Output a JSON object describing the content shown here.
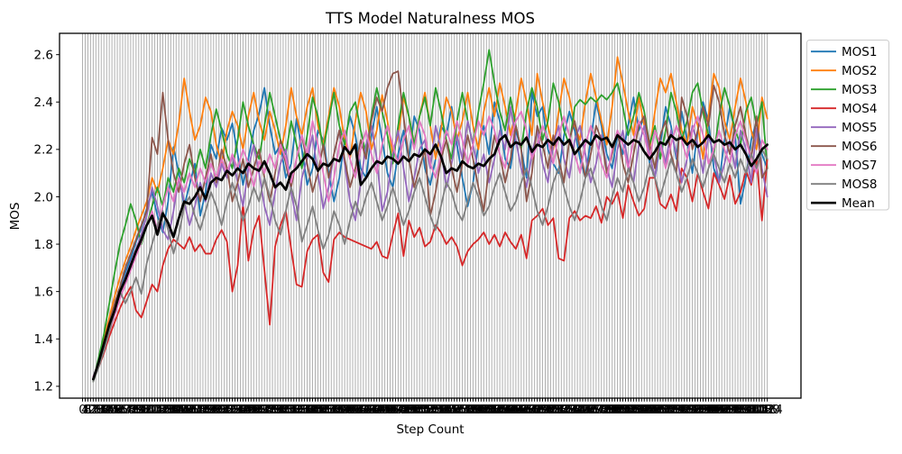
{
  "chart_data": {
    "type": "line",
    "title": "TTS Model Naturalness MOS",
    "xlabel": "Step Count",
    "ylabel": "MOS",
    "x_start": 16,
    "x_step": 8,
    "x_max": 1024,
    "x_tick_min": 0,
    "x_tick_step": 4,
    "xlim": [
      -34.4,
      1074.4
    ],
    "ylim": [
      1.15,
      2.69
    ],
    "yticks": [
      1.2,
      1.4,
      1.6,
      1.8,
      2.0,
      2.2,
      2.4,
      2.6
    ],
    "grid": "vertical",
    "grid_color": "#b0b0b0",
    "legend_position": "upper right outside",
    "series": [
      {
        "name": "MOS1",
        "color": "#1f77b4",
        "lw": 1.8,
        "values": [
          1.23,
          1.29,
          1.36,
          1.44,
          1.53,
          1.61,
          1.68,
          1.74,
          1.81,
          1.87,
          1.95,
          2.02,
          1.92,
          1.85,
          1.98,
          2.21,
          2.1,
          1.96,
          2.05,
          2.14,
          1.92,
          2.02,
          2.22,
          2.16,
          2.29,
          2.24,
          2.31,
          2.18,
          2.05,
          2.16,
          2.28,
          2.35,
          2.46,
          2.3,
          2.18,
          2.22,
          2.08,
          2.14,
          2.33,
          2.2,
          2.05,
          2.12,
          2.28,
          2.24,
          2.1,
          1.98,
          2.08,
          2.24,
          2.34,
          2.26,
          2.12,
          2.08,
          2.26,
          2.38,
          2.24,
          2.1,
          2.04,
          2.18,
          2.28,
          2.16,
          2.34,
          2.28,
          2.12,
          2.05,
          2.16,
          2.3,
          2.26,
          2.38,
          2.22,
          2.08,
          1.96,
          2.06,
          2.22,
          2.3,
          2.18,
          2.4,
          2.32,
          2.16,
          2.12,
          2.28,
          2.2,
          2.08,
          2.44,
          2.34,
          2.38,
          2.2,
          2.14,
          2.1,
          2.26,
          2.36,
          2.28,
          2.16,
          2.08,
          2.24,
          2.4,
          2.3,
          2.18,
          2.12,
          2.26,
          2.18,
          2.3,
          2.42,
          2.28,
          2.34,
          2.14,
          2.08,
          2.22,
          2.38,
          2.3,
          2.16,
          2.36,
          2.24,
          2.1,
          2.28,
          2.4,
          2.32,
          2.12,
          2.06,
          2.24,
          2.38,
          2.26,
          1.97,
          2.08,
          2.24,
          2.32,
          2.18,
          2.12
        ]
      },
      {
        "name": "MOS2",
        "color": "#ff7f0e",
        "lw": 1.8,
        "values": [
          1.23,
          1.31,
          1.4,
          1.49,
          1.58,
          1.66,
          1.73,
          1.79,
          1.86,
          1.92,
          1.98,
          2.08,
          2.02,
          2.12,
          2.24,
          2.18,
          2.31,
          2.5,
          2.36,
          2.24,
          2.3,
          2.42,
          2.36,
          2.22,
          2.14,
          2.28,
          2.36,
          2.3,
          2.2,
          2.34,
          2.44,
          2.32,
          2.24,
          2.36,
          2.28,
          2.18,
          2.3,
          2.46,
          2.34,
          2.26,
          2.38,
          2.46,
          2.3,
          2.22,
          2.34,
          2.46,
          2.38,
          2.24,
          2.16,
          2.32,
          2.44,
          2.36,
          2.2,
          2.28,
          2.43,
          2.32,
          2.18,
          2.26,
          2.42,
          2.34,
          2.22,
          2.34,
          2.44,
          2.3,
          2.16,
          2.28,
          2.42,
          2.36,
          2.24,
          2.32,
          2.44,
          2.3,
          2.2,
          2.36,
          2.46,
          2.34,
          2.48,
          2.38,
          2.26,
          2.36,
          2.5,
          2.4,
          2.26,
          2.52,
          2.4,
          2.3,
          2.2,
          2.36,
          2.5,
          2.42,
          2.3,
          2.24,
          2.4,
          2.52,
          2.42,
          2.32,
          2.22,
          2.38,
          2.59,
          2.48,
          2.36,
          2.26,
          2.42,
          2.3,
          2.2,
          2.36,
          2.5,
          2.44,
          2.52,
          2.4,
          2.28,
          2.22,
          2.38,
          2.3,
          2.16,
          2.34,
          2.52,
          2.46,
          2.32,
          2.24,
          2.38,
          2.5,
          2.4,
          2.28,
          2.2,
          2.42,
          2.33
        ]
      },
      {
        "name": "MOS3",
        "color": "#2ca02c",
        "lw": 1.8,
        "values": [
          1.22,
          1.32,
          1.42,
          1.55,
          1.68,
          1.8,
          1.88,
          1.97,
          1.9,
          1.8,
          1.88,
          1.96,
          2.04,
          1.96,
          2.08,
          2.02,
          2.12,
          2.06,
          2.16,
          2.1,
          2.2,
          2.12,
          2.26,
          2.37,
          2.28,
          2.18,
          2.12,
          2.24,
          2.4,
          2.3,
          2.22,
          2.16,
          2.3,
          2.44,
          2.34,
          2.24,
          2.18,
          2.32,
          2.22,
          2.12,
          2.26,
          2.42,
          2.34,
          2.2,
          2.32,
          2.44,
          2.3,
          2.22,
          2.36,
          2.4,
          2.28,
          2.18,
          2.34,
          2.46,
          2.36,
          2.26,
          2.14,
          2.3,
          2.44,
          2.34,
          2.22,
          2.34,
          2.42,
          2.3,
          2.46,
          2.36,
          2.24,
          2.16,
          2.32,
          2.44,
          2.32,
          2.22,
          2.36,
          2.48,
          2.62,
          2.48,
          2.36,
          2.28,
          2.42,
          2.3,
          2.2,
          2.36,
          2.46,
          2.38,
          2.24,
          2.32,
          2.48,
          2.4,
          2.28,
          2.22,
          2.38,
          2.41,
          2.39,
          2.42,
          2.4,
          2.43,
          2.41,
          2.44,
          2.48,
          2.38,
          2.26,
          2.34,
          2.44,
          2.36,
          2.22,
          2.3,
          2.16,
          2.28,
          2.44,
          2.36,
          2.24,
          2.32,
          2.44,
          2.48,
          2.36,
          2.26,
          2.18,
          2.34,
          2.46,
          2.38,
          2.28,
          2.22,
          2.36,
          2.42,
          2.3,
          2.4,
          2.12
        ]
      },
      {
        "name": "MOS4",
        "color": "#d62728",
        "lw": 1.8,
        "values": [
          1.24,
          1.28,
          1.34,
          1.41,
          1.47,
          1.53,
          1.58,
          1.62,
          1.52,
          1.49,
          1.56,
          1.63,
          1.6,
          1.71,
          1.78,
          1.82,
          1.8,
          1.78,
          1.83,
          1.77,
          1.8,
          1.76,
          1.76,
          1.82,
          1.86,
          1.81,
          1.6,
          1.71,
          1.97,
          1.73,
          1.86,
          1.92,
          1.69,
          1.46,
          1.79,
          1.88,
          1.94,
          1.78,
          1.63,
          1.62,
          1.77,
          1.82,
          1.84,
          1.68,
          1.64,
          1.82,
          1.85,
          1.83,
          1.82,
          1.81,
          1.8,
          1.79,
          1.78,
          1.81,
          1.75,
          1.74,
          1.84,
          1.93,
          1.75,
          1.9,
          1.83,
          1.87,
          1.79,
          1.81,
          1.88,
          1.85,
          1.8,
          1.83,
          1.79,
          1.71,
          1.77,
          1.8,
          1.82,
          1.85,
          1.8,
          1.84,
          1.79,
          1.85,
          1.81,
          1.78,
          1.84,
          1.74,
          1.9,
          1.92,
          1.95,
          1.88,
          1.91,
          1.74,
          1.73,
          1.91,
          1.94,
          1.9,
          1.92,
          1.91,
          1.96,
          1.89,
          2.0,
          1.97,
          2.02,
          1.91,
          2.05,
          1.98,
          1.92,
          1.95,
          2.08,
          2.08,
          1.97,
          1.95,
          2.01,
          1.94,
          2.12,
          2.08,
          1.98,
          2.1,
          2.02,
          1.95,
          2.1,
          2.05,
          1.99,
          2.09,
          1.97,
          2.02,
          2.11,
          2.05,
          2.16,
          1.9,
          2.16
        ]
      },
      {
        "name": "MOS5",
        "color": "#9467bd",
        "lw": 1.8,
        "values": [
          1.24,
          1.3,
          1.37,
          1.45,
          1.52,
          1.59,
          1.66,
          1.72,
          1.78,
          1.84,
          1.92,
          2.04,
          1.96,
          1.86,
          1.82,
          1.94,
          2.08,
          1.98,
          1.88,
          1.96,
          2.06,
          1.98,
          2.1,
          2.04,
          2.14,
          2.08,
          2.18,
          2.06,
          1.96,
          2.12,
          2.22,
          2.1,
          1.96,
          1.88,
          2.02,
          2.14,
          2.2,
          2.02,
          1.9,
          2.08,
          2.16,
          2.26,
          2.1,
          1.95,
          2.04,
          2.18,
          2.28,
          2.14,
          1.98,
          1.9,
          2.06,
          2.22,
          2.3,
          2.16,
          1.94,
          2.02,
          2.18,
          2.28,
          2.12,
          1.98,
          2.08,
          2.2,
          2.24,
          2.12,
          2.3,
          2.2,
          2.04,
          2.14,
          2.26,
          2.16,
          2.32,
          2.22,
          2.1,
          2.18,
          2.06,
          2.16,
          2.28,
          2.2,
          2.38,
          2.24,
          2.12,
          2.04,
          2.18,
          2.28,
          2.14,
          2.06,
          2.22,
          2.3,
          2.16,
          2.08,
          2.24,
          2.3,
          2.18,
          2.06,
          2.14,
          2.26,
          2.12,
          2.04,
          2.2,
          2.28,
          2.14,
          2.06,
          2.22,
          2.3,
          2.18,
          2.08,
          2.24,
          2.14,
          2.28,
          2.18,
          2.06,
          2.16,
          2.3,
          2.22,
          2.1,
          2.26,
          2.18,
          2.06,
          2.14,
          2.24,
          2.12,
          2.28,
          2.2,
          2.06,
          2.29,
          2.12,
          2.0
        ]
      },
      {
        "name": "MOS6",
        "color": "#8c564b",
        "lw": 1.8,
        "values": [
          1.23,
          1.3,
          1.38,
          1.47,
          1.55,
          1.62,
          1.7,
          1.76,
          1.82,
          1.88,
          1.94,
          2.25,
          2.18,
          2.44,
          2.24,
          2.1,
          2.02,
          2.14,
          2.22,
          2.08,
          1.98,
          2.08,
          2.18,
          2.06,
          2.2,
          2.12,
          1.98,
          2.06,
          2.16,
          2.04,
          2.12,
          2.2,
          2.08,
          1.98,
          2.1,
          2.24,
          2.14,
          2.04,
          2.16,
          2.26,
          2.14,
          2.02,
          2.1,
          2.22,
          2.08,
          2.18,
          2.28,
          2.16,
          2.04,
          2.12,
          2.24,
          2.16,
          2.32,
          2.42,
          2.36,
          2.46,
          2.52,
          2.53,
          2.34,
          2.16,
          2.04,
          2.12,
          2.2,
          1.92,
          2.02,
          2.16,
          2.24,
          2.12,
          2.02,
          2.14,
          2.26,
          2.16,
          2.04,
          1.94,
          2.12,
          2.26,
          2.18,
          2.06,
          2.16,
          2.3,
          2.2,
          1.98,
          2.1,
          2.3,
          2.22,
          2.12,
          2.26,
          2.16,
          2.06,
          2.24,
          2.32,
          2.2,
          2.08,
          2.18,
          2.3,
          2.24,
          2.1,
          2.18,
          2.28,
          2.14,
          2.06,
          2.18,
          2.3,
          2.34,
          2.22,
          2.12,
          2.26,
          2.32,
          2.18,
          2.1,
          2.42,
          2.34,
          2.2,
          2.28,
          2.38,
          2.3,
          2.47,
          2.4,
          2.26,
          2.18,
          2.3,
          2.38,
          2.26,
          2.16,
          2.34,
          2.08,
          2.12
        ]
      },
      {
        "name": "MOS7",
        "color": "#e377c2",
        "lw": 1.8,
        "values": [
          1.24,
          1.29,
          1.35,
          1.43,
          1.5,
          1.57,
          1.63,
          1.69,
          1.75,
          1.81,
          1.88,
          1.94,
          1.86,
          1.96,
          2.04,
          1.98,
          2.08,
          2.02,
          2.1,
          2.04,
          2.12,
          2.06,
          2.14,
          2.08,
          2.16,
          2.1,
          2.18,
          2.12,
          2.2,
          2.14,
          2.04,
          2.15,
          2.1,
          2.18,
          2.12,
          2.22,
          2.16,
          2.06,
          2.16,
          2.26,
          2.18,
          2.32,
          2.22,
          2.1,
          1.98,
          2.08,
          2.22,
          2.28,
          2.16,
          2.08,
          2.2,
          2.28,
          2.18,
          2.1,
          2.22,
          2.3,
          2.22,
          2.14,
          2.24,
          2.3,
          2.2,
          2.32,
          2.26,
          2.14,
          2.08,
          2.18,
          2.28,
          2.22,
          2.32,
          2.24,
          2.14,
          2.22,
          2.32,
          2.26,
          2.34,
          2.28,
          2.18,
          2.12,
          2.24,
          2.32,
          2.36,
          2.28,
          2.16,
          2.22,
          2.3,
          2.24,
          2.14,
          2.26,
          2.34,
          2.26,
          2.18,
          2.1,
          2.22,
          2.3,
          2.24,
          2.14,
          2.08,
          2.2,
          2.28,
          2.22,
          2.12,
          2.24,
          2.32,
          2.26,
          2.16,
          2.28,
          2.22,
          2.12,
          2.22,
          2.3,
          2.24,
          2.16,
          2.28,
          2.34,
          2.26,
          2.14,
          2.2,
          2.28,
          2.2,
          2.14,
          2.26,
          2.32,
          2.24,
          2.16,
          2.1,
          2.24,
          2.2
        ]
      },
      {
        "name": "MOS8",
        "color": "#7f7f7f",
        "lw": 1.8,
        "values": [
          1.22,
          1.28,
          1.35,
          1.43,
          1.52,
          1.6,
          1.55,
          1.6,
          1.66,
          1.59,
          1.72,
          1.8,
          1.88,
          1.94,
          1.86,
          1.76,
          1.84,
          1.96,
          2.0,
          1.92,
          1.86,
          1.94,
          2.02,
          1.96,
          1.88,
          1.98,
          2.06,
          1.98,
          1.9,
          1.96,
          2.04,
          1.98,
          2.08,
          2.0,
          1.9,
          1.84,
          1.94,
          2.04,
          1.96,
          1.81,
          1.88,
          1.96,
          1.86,
          1.78,
          1.84,
          1.94,
          1.88,
          1.8,
          1.9,
          1.98,
          1.92,
          2.0,
          2.06,
          1.98,
          1.9,
          1.96,
          2.04,
          1.96,
          1.88,
          1.94,
          2.02,
          2.08,
          2.0,
          1.92,
          1.86,
          1.96,
          2.06,
          2.02,
          1.94,
          1.9,
          1.98,
          2.06,
          2.0,
          1.92,
          1.96,
          2.04,
          2.1,
          2.02,
          1.94,
          1.98,
          2.06,
          2.12,
          2.04,
          1.94,
          1.88,
          1.96,
          2.06,
          2.12,
          2.04,
          1.96,
          1.9,
          1.98,
          2.08,
          2.12,
          2.04,
          1.96,
          1.9,
          2.0,
          2.08,
          2.02,
          2.12,
          2.06,
          1.98,
          2.04,
          2.14,
          2.08,
          2.0,
          2.08,
          2.16,
          2.1,
          2.02,
          2.08,
          2.16,
          2.1,
          2.04,
          2.12,
          2.18,
          2.12,
          2.06,
          2.14,
          2.08,
          2.16,
          2.1,
          2.18,
          2.12,
          2.2,
          2.16
        ]
      },
      {
        "name": "Mean",
        "color": "#000000",
        "lw": 2.7,
        "values": [
          1.23,
          1.3,
          1.38,
          1.46,
          1.52,
          1.6,
          1.65,
          1.71,
          1.77,
          1.82,
          1.88,
          1.92,
          1.84,
          1.93,
          1.89,
          1.83,
          1.91,
          1.98,
          1.97,
          2.0,
          2.04,
          1.99,
          2.06,
          2.08,
          2.07,
          2.11,
          2.09,
          2.12,
          2.1,
          2.14,
          2.12,
          2.11,
          2.15,
          2.1,
          2.04,
          2.06,
          2.03,
          2.1,
          2.12,
          2.15,
          2.18,
          2.16,
          2.11,
          2.14,
          2.13,
          2.16,
          2.15,
          2.21,
          2.18,
          2.22,
          2.05,
          2.08,
          2.12,
          2.15,
          2.14,
          2.17,
          2.16,
          2.14,
          2.17,
          2.15,
          2.18,
          2.17,
          2.2,
          2.18,
          2.22,
          2.17,
          2.1,
          2.12,
          2.11,
          2.15,
          2.13,
          2.12,
          2.14,
          2.13,
          2.16,
          2.18,
          2.24,
          2.26,
          2.21,
          2.23,
          2.22,
          2.25,
          2.19,
          2.22,
          2.21,
          2.24,
          2.22,
          2.25,
          2.22,
          2.24,
          2.18,
          2.21,
          2.24,
          2.22,
          2.26,
          2.24,
          2.25,
          2.21,
          2.26,
          2.24,
          2.22,
          2.24,
          2.23,
          2.19,
          2.16,
          2.19,
          2.23,
          2.22,
          2.26,
          2.24,
          2.25,
          2.22,
          2.24,
          2.21,
          2.23,
          2.26,
          2.23,
          2.24,
          2.22,
          2.23,
          2.2,
          2.22,
          2.18,
          2.13,
          2.16,
          2.2,
          2.22
        ]
      }
    ]
  }
}
